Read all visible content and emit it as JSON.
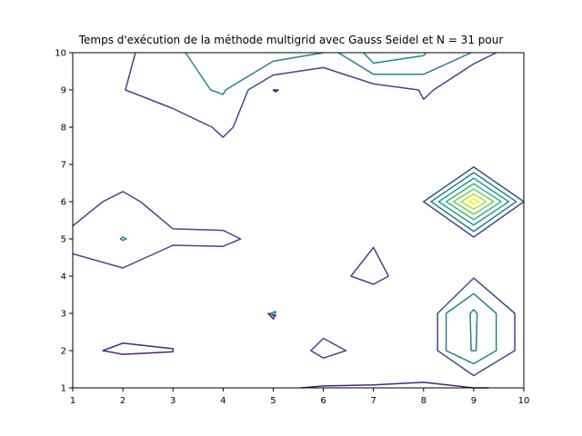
{
  "chart_data": {
    "type": "contour",
    "title": "Temps d'exécution de la méthode multigrid avec Gauss Seidel et N = 31 pour",
    "xlabel": "",
    "ylabel": "",
    "xlim": [
      1,
      10
    ],
    "ylim": [
      1,
      10
    ],
    "xticks": [
      "1",
      "2",
      "3",
      "4",
      "5",
      "6",
      "7",
      "8",
      "9",
      "10"
    ],
    "yticks": [
      "1",
      "2",
      "3",
      "4",
      "5",
      "6",
      "7",
      "8",
      "9",
      "10"
    ],
    "grid": false,
    "colors": {
      "level_1": "#482878",
      "level_2": "#3e4a89",
      "level_3": "#26828e",
      "level_4": "#1f9e89",
      "level_5": "#35b779",
      "level_6": "#6ece58",
      "level_7": "#b5de2b",
      "level_8": "#fde725"
    },
    "contours": [
      {
        "level": 1,
        "closed": false,
        "points": [
          [
            5.55,
            1.0
          ],
          [
            6.0,
            1.05
          ],
          [
            7.0,
            1.08
          ],
          [
            8.0,
            1.15
          ],
          [
            9.0,
            1.0
          ],
          [
            9.3,
            1.0
          ]
        ]
      },
      {
        "level": 1,
        "closed": true,
        "points": [
          [
            1.6,
            2.0
          ],
          [
            2.0,
            2.2
          ],
          [
            3.0,
            2.05
          ],
          [
            3.0,
            1.97
          ],
          [
            2.0,
            1.9
          ]
        ]
      },
      {
        "level": 1,
        "closed": true,
        "points": [
          [
            4.9,
            3.0
          ],
          [
            5.05,
            2.95
          ],
          [
            5.0,
            2.85
          ]
        ]
      },
      {
        "level": 1,
        "closed": true,
        "points": [
          [
            5.0,
            9.0
          ],
          [
            5.1,
            9.0
          ],
          [
            5.05,
            8.95
          ]
        ]
      },
      {
        "level": 2,
        "closed": false,
        "points": [
          [
            1.0,
            5.35
          ],
          [
            1.6,
            6.0
          ],
          [
            2.0,
            6.27
          ],
          [
            2.35,
            6.0
          ],
          [
            3.0,
            5.27
          ],
          [
            4.0,
            5.23
          ],
          [
            4.35,
            5.0
          ],
          [
            4.0,
            4.8
          ],
          [
            3.0,
            4.83
          ],
          [
            2.0,
            4.22
          ],
          [
            1.0,
            4.6
          ]
        ]
      },
      {
        "level": 2,
        "closed": true,
        "points": [
          [
            6.55,
            4.0
          ],
          [
            7.0,
            4.77
          ],
          [
            7.3,
            4.0
          ],
          [
            7.0,
            3.78
          ]
        ]
      },
      {
        "level": 2,
        "closed": true,
        "points": [
          [
            5.75,
            2.0
          ],
          [
            6.0,
            2.33
          ],
          [
            6.45,
            2.0
          ],
          [
            6.0,
            1.8
          ]
        ]
      },
      {
        "level": 2,
        "closed": true,
        "points": [
          [
            8.28,
            3.0
          ],
          [
            9.0,
            3.95
          ],
          [
            9.82,
            3.0
          ],
          [
            9.82,
            2.0
          ],
          [
            9.0,
            1.33
          ],
          [
            8.28,
            2.0
          ]
        ]
      },
      {
        "level": 2,
        "closed": true,
        "points": [
          [
            8.0,
            6.0
          ],
          [
            9.0,
            6.93
          ],
          [
            10.0,
            6.0
          ],
          [
            9.0,
            5.05
          ]
        ]
      },
      {
        "level": 2,
        "closed": false,
        "points": [
          [
            2.25,
            10.0
          ],
          [
            2.05,
            9.0
          ],
          [
            3.0,
            8.5
          ],
          [
            3.78,
            8.0
          ],
          [
            4.0,
            7.73
          ],
          [
            4.2,
            8.0
          ],
          [
            4.5,
            9.0
          ],
          [
            5.0,
            9.4
          ],
          [
            6.0,
            9.6
          ],
          [
            7.0,
            9.16
          ],
          [
            7.9,
            9.0
          ],
          [
            8.0,
            8.75
          ],
          [
            8.2,
            9.0
          ],
          [
            9.0,
            9.7
          ],
          [
            9.45,
            10.0
          ]
        ]
      },
      {
        "level": 3,
        "closed": true,
        "points": [
          [
            4.95,
            3.0
          ],
          [
            5.05,
            3.05
          ],
          [
            5.02,
            2.9
          ]
        ]
      },
      {
        "level": 3,
        "closed": true,
        "points": [
          [
            1.95,
            5.0
          ],
          [
            2.0,
            5.05
          ],
          [
            2.07,
            5.0
          ],
          [
            2.0,
            4.96
          ]
        ]
      },
      {
        "level": 3,
        "closed": true,
        "points": [
          [
            8.45,
            2.0
          ],
          [
            8.45,
            3.0
          ],
          [
            9.0,
            3.53
          ],
          [
            9.45,
            3.0
          ],
          [
            9.45,
            2.0
          ],
          [
            9.0,
            1.65
          ]
        ]
      },
      {
        "level": 3,
        "closed": true,
        "points": [
          [
            8.93,
            3.0
          ],
          [
            9.0,
            3.1
          ],
          [
            9.07,
            3.0
          ],
          [
            9.05,
            2.0
          ],
          [
            8.95,
            2.0
          ]
        ]
      },
      {
        "level": 3,
        "closed": false,
        "points": [
          [
            3.25,
            10.0
          ],
          [
            3.75,
            9.0
          ],
          [
            4.0,
            8.88
          ],
          [
            4.05,
            9.0
          ],
          [
            5.0,
            9.77
          ],
          [
            6.0,
            10.0
          ]
        ]
      },
      {
        "level": 3,
        "closed": false,
        "points": [
          [
            6.8,
            10.0
          ],
          [
            7.0,
            9.72
          ],
          [
            8.0,
            9.92
          ],
          [
            8.05,
            10.0
          ]
        ]
      },
      {
        "level": 3,
        "closed": false,
        "points": [
          [
            8.95,
            10.0
          ],
          [
            8.0,
            9.42
          ],
          [
            7.0,
            9.42
          ],
          [
            6.3,
            10.0
          ]
        ]
      },
      {
        "level": 3,
        "closed": true,
        "points": [
          [
            8.15,
            6.0
          ],
          [
            9.0,
            6.78
          ],
          [
            9.85,
            6.0
          ],
          [
            9.0,
            5.2
          ]
        ]
      },
      {
        "level": 4,
        "closed": true,
        "points": [
          [
            8.3,
            6.0
          ],
          [
            9.0,
            6.63
          ],
          [
            9.7,
            6.0
          ],
          [
            9.0,
            5.37
          ]
        ]
      },
      {
        "level": 5,
        "closed": true,
        "points": [
          [
            8.45,
            6.0
          ],
          [
            9.0,
            6.48
          ],
          [
            9.55,
            6.0
          ],
          [
            9.0,
            5.52
          ]
        ]
      },
      {
        "level": 6,
        "closed": true,
        "points": [
          [
            8.6,
            6.0
          ],
          [
            9.0,
            6.34
          ],
          [
            9.4,
            6.0
          ],
          [
            9.0,
            5.66
          ]
        ]
      },
      {
        "level": 7,
        "closed": true,
        "points": [
          [
            8.75,
            6.0
          ],
          [
            9.0,
            6.2
          ],
          [
            9.25,
            6.0
          ],
          [
            9.0,
            5.8
          ]
        ]
      },
      {
        "level": 8,
        "closed": true,
        "points": [
          [
            8.9,
            6.0
          ],
          [
            9.0,
            6.07
          ],
          [
            9.1,
            6.0
          ],
          [
            9.0,
            5.93
          ]
        ]
      }
    ]
  }
}
